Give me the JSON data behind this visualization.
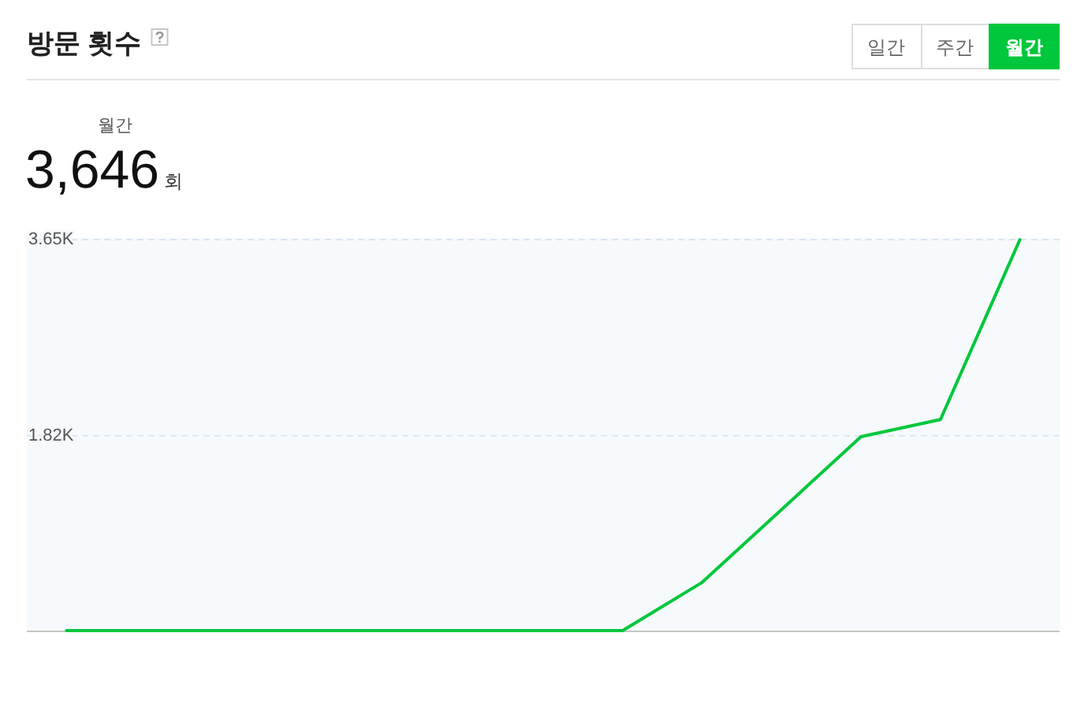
{
  "chart_data": {
    "type": "line",
    "title": "방문 횟수",
    "annotations": [
      "일간",
      "주간",
      "월간",
      "월간",
      "3,646",
      "회"
    ],
    "categories": [
      null,
      null,
      null,
      null,
      null,
      null,
      null,
      null,
      null,
      null,
      null,
      null,
      null
    ],
    "values": [
      0,
      0,
      0,
      0,
      0,
      0,
      0,
      0,
      450,
      1130,
      1810,
      1970,
      3650
    ],
    "color": "#00c73c",
    "line_style": "solid",
    "ylim": [
      0,
      3650
    ],
    "yticks": [
      {
        "value": 1820,
        "label": "1.82K"
      },
      {
        "value": 3650,
        "label": "3.65K"
      }
    ],
    "grid": "y"
  }
}
